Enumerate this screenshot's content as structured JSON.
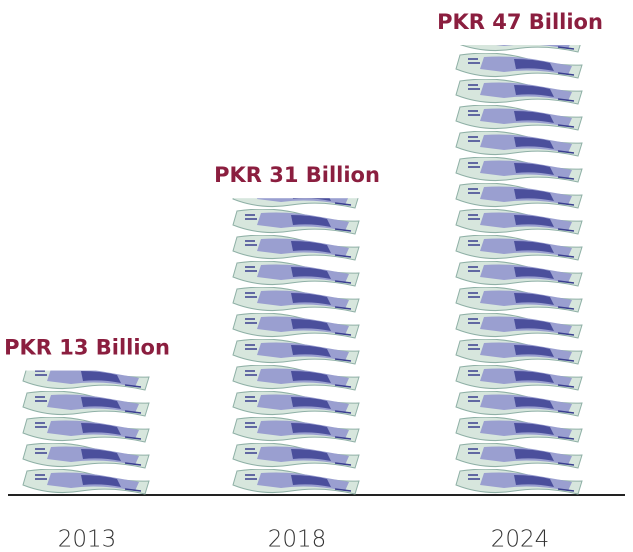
{
  "chart_data": {
    "type": "bar",
    "categories": [
      "2013",
      "2018",
      "2024"
    ],
    "values": [
      13,
      31,
      47
    ],
    "value_labels": [
      "PKR 13 Billion",
      "PKR 31 Billion",
      "PKR 47 Billion"
    ],
    "ylim": [
      0,
      47
    ],
    "label_color": "#8b1e3f"
  }
}
